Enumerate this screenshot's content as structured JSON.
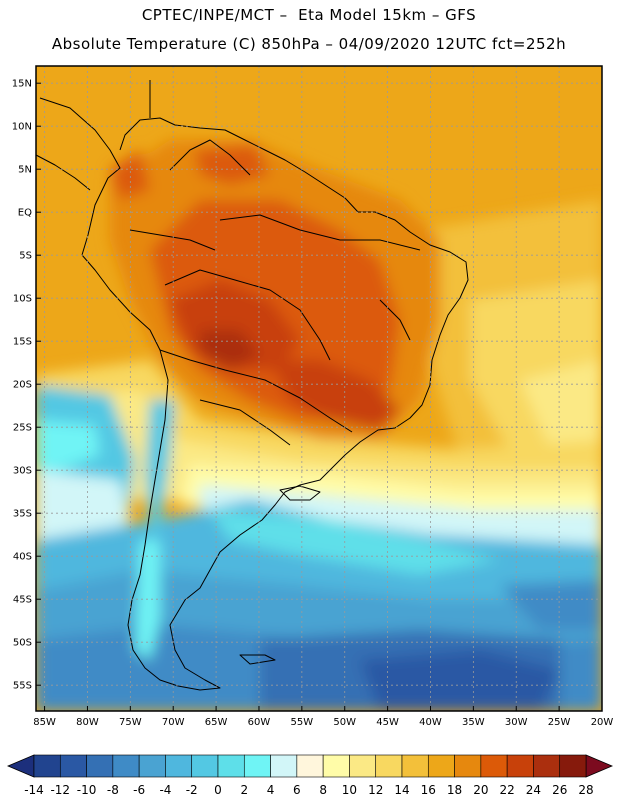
{
  "header": {
    "line1": "CPTEC/INPE/MCT –  Eta Model 15km – GFS",
    "line2": "Absolute Temperature (C) 850hPa – 04/09/2020 12UTC fct=252h"
  },
  "axes": {
    "lat_labels": [
      "15N",
      "10N",
      "5N",
      "EQ",
      "5S",
      "10S",
      "15S",
      "20S",
      "25S",
      "30S",
      "35S",
      "40S",
      "45S",
      "50S",
      "55S"
    ],
    "lat_values": [
      15,
      10,
      5,
      0,
      -5,
      -10,
      -15,
      -20,
      -25,
      -30,
      -35,
      -40,
      -45,
      -50,
      -55
    ],
    "lon_labels": [
      "85W",
      "80W",
      "75W",
      "70W",
      "65W",
      "60W",
      "55W",
      "50W",
      "45W",
      "40W",
      "35W",
      "30W",
      "25W",
      "20W"
    ],
    "lon_values": [
      -85,
      -80,
      -75,
      -70,
      -65,
      -60,
      -55,
      -50,
      -45,
      -40,
      -35,
      -30,
      -25,
      -20
    ],
    "lat_range": [
      -58,
      17
    ],
    "lon_range": [
      -86,
      -20
    ]
  },
  "colorbar": {
    "tick_labels": [
      "-14",
      "-12",
      "-10",
      "-8",
      "-6",
      "-4",
      "-2",
      "0",
      "2",
      "4",
      "6",
      "8",
      "10",
      "12",
      "14",
      "16",
      "18",
      "20",
      "22",
      "24",
      "26",
      "28"
    ],
    "colors": [
      "#21448f",
      "#2a58a4",
      "#3470b4",
      "#3f8bc6",
      "#4aa3d2",
      "#4fb7de",
      "#53c8e3",
      "#5edfe9",
      "#6ff4f5",
      "#d2f6f8",
      "#fff6dc",
      "#fffca8",
      "#fbe985",
      "#f8d860",
      "#f3c03a",
      "#eda719",
      "#e6880e",
      "#dc5a08",
      "#c8410a",
      "#ab2f0e",
      "#861a0c"
    ],
    "under_color": "#1c2f7c",
    "over_color": "#7c0b1f"
  }
}
